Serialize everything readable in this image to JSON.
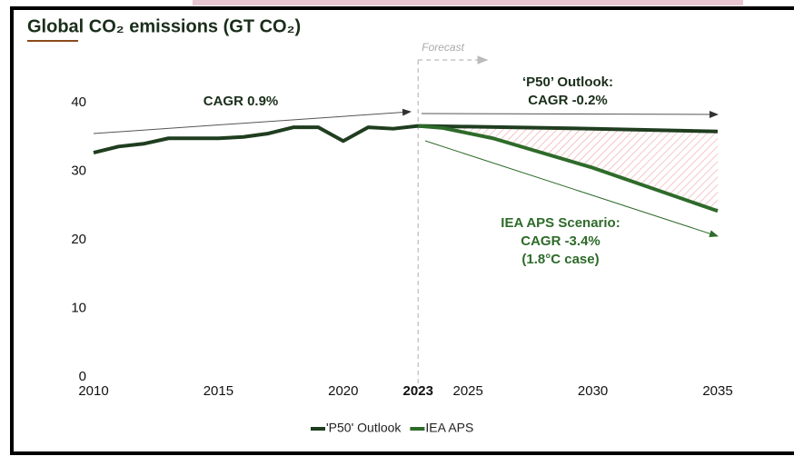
{
  "chart_data": {
    "type": "line",
    "title": "Global CO₂ emissions (GT CO₂)",
    "xlim": [
      2010,
      2035
    ],
    "xticks": [
      2010,
      2015,
      2020,
      2023,
      2025,
      2030,
      2035
    ],
    "ylim": [
      0,
      40
    ],
    "yticks": [
      0,
      10,
      20,
      30,
      40
    ],
    "grid": false,
    "forecast_start": 2023,
    "forecast_label": "Forecast",
    "legend": "bottom",
    "series": [
      {
        "name": "'P50' Outlook",
        "color": "#1f3d1f",
        "x": [
          2010,
          2011,
          2012,
          2013,
          2014,
          2015,
          2016,
          2017,
          2018,
          2019,
          2020,
          2021,
          2022,
          2023,
          2025,
          2030,
          2035
        ],
        "values": [
          32.7,
          33.6,
          34.0,
          34.8,
          34.8,
          34.8,
          35.0,
          35.5,
          36.4,
          36.4,
          34.4,
          36.4,
          36.2,
          36.6,
          36.5,
          36.2,
          35.8
        ]
      },
      {
        "name": "IEA APS",
        "color": "#2e6b2a",
        "x": [
          2023,
          2024,
          2026,
          2030,
          2035
        ],
        "values": [
          36.6,
          36.3,
          34.8,
          30.5,
          24.2
        ]
      }
    ],
    "annotations": [
      {
        "lines": [
          "CAGR 0.9%"
        ]
      },
      {
        "lines": [
          "‘P50’ Outlook:",
          "CAGR -0.2%"
        ]
      },
      {
        "lines": [
          "IEA APS Scenario:",
          "CAGR -3.4%",
          "(1.8°C case)"
        ]
      }
    ]
  }
}
